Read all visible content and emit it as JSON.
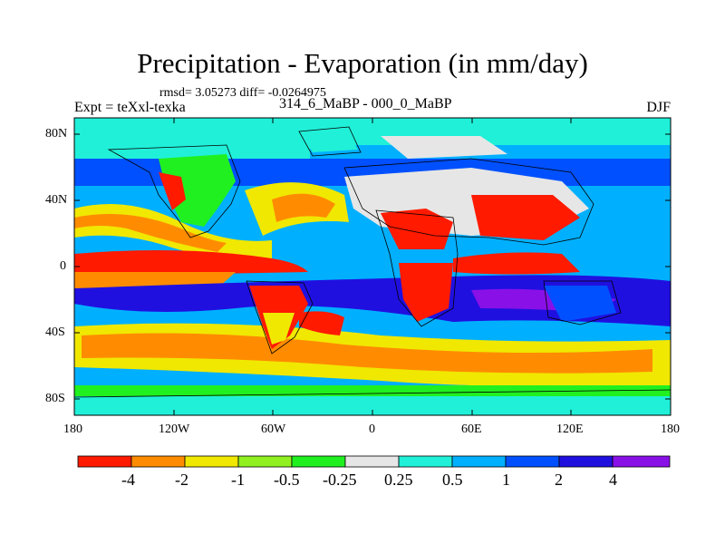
{
  "header": {
    "title": "Precipitation - Evaporation (in mm/day)",
    "stats": "rmsd= 3.05273 diff= -0.0264975",
    "experiment": "Expt = teXxl-texka",
    "comparison": "314_6_MaBP - 000_0_MaBP",
    "season": "DJF"
  },
  "axes": {
    "x_ticks": [
      "180",
      "120W",
      "60W",
      "0",
      "60E",
      "120E",
      "180"
    ],
    "y_ticks": [
      "80N",
      "40N",
      "0",
      "40S",
      "80S"
    ]
  },
  "colorbar": {
    "colors": [
      "#ff1a00",
      "#ff8c00",
      "#f0e800",
      "#90f020",
      "#20f020",
      "#e6e6e6",
      "#20f0d8",
      "#00b0ff",
      "#0050ff",
      "#2010e0",
      "#8a10e8"
    ],
    "labels": [
      "-4",
      "-2",
      "-1",
      "-0.5",
      "-0.25",
      "0.25",
      "0.5",
      "1",
      "2",
      "4"
    ]
  },
  "map_colors": {
    "red": "#ff1a00",
    "orange": "#ff8c00",
    "yellow": "#f0e800",
    "lightgreen": "#90f020",
    "green": "#20f020",
    "white": "#e6e6e6",
    "cyan": "#20f0d8",
    "lightblue": "#00b0ff",
    "blue": "#0050ff",
    "darkblue": "#2010e0",
    "purple": "#8a10e8"
  }
}
